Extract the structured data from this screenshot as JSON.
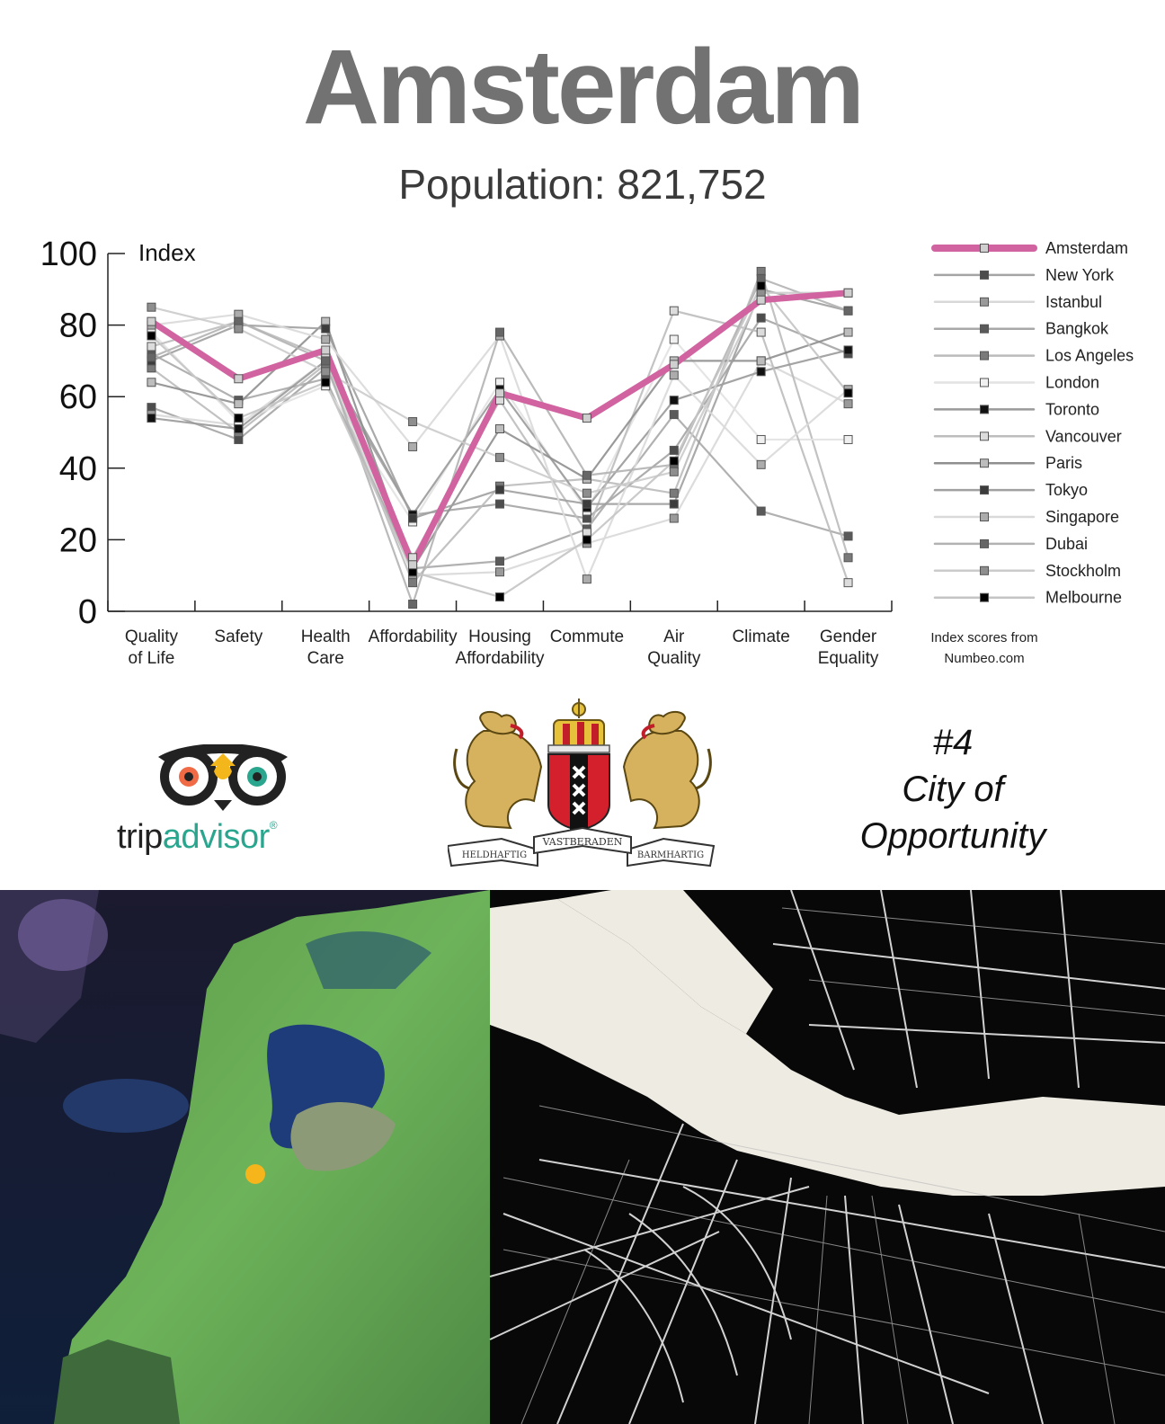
{
  "title": "Amsterdam",
  "subtitle": "Population: 821,752",
  "source_note": [
    "Index scores from",
    "Numbeo.com"
  ],
  "tripadvisor": {
    "word_part1": "trip",
    "word_part2": "advisor",
    "registered": "®"
  },
  "crest": {
    "banner_center": "VASTBERADEN",
    "banner_left": "HELDHAFTIG",
    "banner_right": "BARMHARTIG"
  },
  "ranking": {
    "rank": "#4",
    "line1": "City of",
    "line2": "Opportunity"
  },
  "colors": {
    "highlight": "#d063a0",
    "title": "#727272",
    "tripadvisor_green": "#2aa68f",
    "map_marker": "#f6b51b"
  },
  "chart_data": {
    "type": "line",
    "ylabel": "Index",
    "ylim": [
      0,
      100
    ],
    "yticks": [
      "0",
      "20",
      "40",
      "60",
      "80",
      "100"
    ],
    "categories": [
      [
        "Quality",
        "of Life"
      ],
      [
        "Safety"
      ],
      [
        "Health",
        "Care"
      ],
      [
        "Affordability"
      ],
      [
        "Housing",
        "Affordability"
      ],
      [
        "Commute"
      ],
      [
        "Air",
        "Quality"
      ],
      [
        "Climate"
      ],
      [
        "Gender",
        "Equality"
      ]
    ],
    "legend_position": "right",
    "highlight_series": "Amsterdam",
    "series": [
      {
        "name": "Amsterdam",
        "line": "#d063a0",
        "marker": "#cfcfcf",
        "values": [
          81,
          65,
          73,
          13,
          61,
          54,
          69,
          87,
          89
        ]
      },
      {
        "name": "New York",
        "line": "#a4a4a4",
        "marker": "#4d4d4d",
        "values": [
          57,
          48,
          68,
          27,
          30,
          26,
          45,
          82,
          72
        ]
      },
      {
        "name": "Istanbul",
        "line": "#d8d8d8",
        "marker": "#9a9a9a",
        "values": [
          55,
          52,
          70,
          10,
          11,
          19,
          26,
          70,
          58
        ]
      },
      {
        "name": "Bangkok",
        "line": "#a8a8a8",
        "marker": "#5a5a5a",
        "values": [
          72,
          59,
          65,
          12,
          14,
          23,
          55,
          28,
          21
        ]
      },
      {
        "name": "Los Angeles",
        "line": "#bbbbbb",
        "marker": "#7a7a7a",
        "values": [
          68,
          50,
          69,
          8,
          35,
          37,
          33,
          95,
          15
        ]
      },
      {
        "name": "London",
        "line": "#e2e2e2",
        "marker": "#f0f0f0",
        "values": [
          78,
          53,
          63,
          25,
          64,
          28,
          76,
          48,
          48
        ]
      },
      {
        "name": "Toronto",
        "line": "#9a9a9a",
        "marker": "#111111",
        "values": [
          54,
          51,
          70,
          27,
          62,
          29,
          59,
          67,
          73
        ]
      },
      {
        "name": "Vancouver",
        "line": "#bdbdbd",
        "marker": "#dcdcdc",
        "values": [
          74,
          81,
          71,
          15,
          59,
          22,
          84,
          78,
          8
        ]
      },
      {
        "name": "Paris",
        "line": "#8f8f8f",
        "marker": "#bdbdbd",
        "values": [
          64,
          58,
          81,
          12,
          51,
          37,
          70,
          70,
          78
        ]
      },
      {
        "name": "Tokyo",
        "line": "#a0a0a0",
        "marker": "#3c3c3c",
        "values": [
          70,
          80,
          79,
          26,
          34,
          30,
          30,
          90,
          84
        ]
      },
      {
        "name": "Singapore",
        "line": "#d9d9d9",
        "marker": "#acacac",
        "values": [
          80,
          83,
          76,
          46,
          77,
          9,
          66,
          41,
          62
        ]
      },
      {
        "name": "Dubai",
        "line": "#b2b2b2",
        "marker": "#666666",
        "values": [
          71,
          81,
          70,
          2,
          78,
          38,
          41,
          93,
          84
        ]
      },
      {
        "name": "Stockholm",
        "line": "#cbcbcb",
        "marker": "#8e8e8e",
        "values": [
          85,
          79,
          67,
          53,
          43,
          33,
          39,
          89,
          89
        ]
      },
      {
        "name": "Melbourne",
        "line": "#c4c4c4",
        "marker": "#000000",
        "values": [
          77,
          54,
          64,
          11,
          4,
          20,
          42,
          91,
          61
        ]
      }
    ]
  }
}
